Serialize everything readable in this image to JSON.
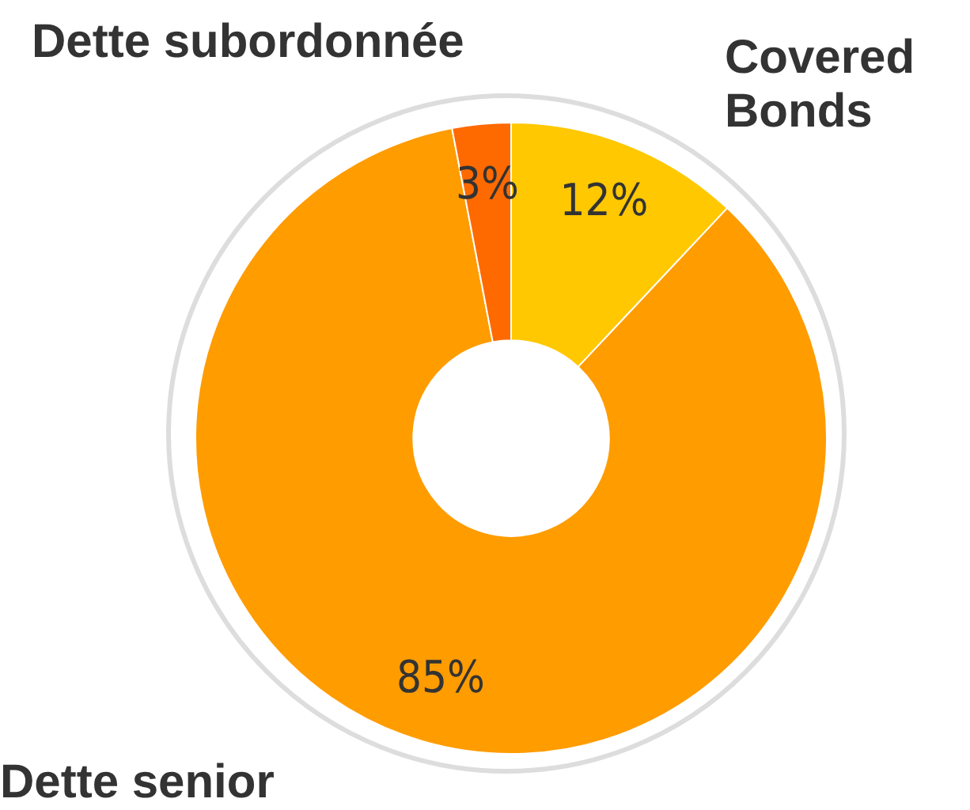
{
  "chart_data": {
    "type": "donut",
    "categories": [
      "Covered Bonds",
      "Dette senior",
      "Dette subordonnée"
    ],
    "values": [
      12,
      85,
      3
    ],
    "colors": [
      "#ffc800",
      "#ff9c00",
      "#ff6a00"
    ],
    "value_labels": [
      "12%",
      "85%",
      "3%"
    ]
  }
}
